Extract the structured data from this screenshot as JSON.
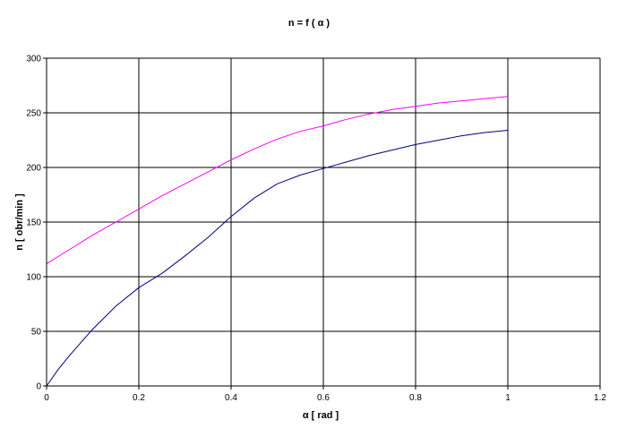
{
  "chart_data": {
    "type": "line",
    "title": "n = f ( α )",
    "xlabel": "α  [ rad ]",
    "ylabel": "n [ obr/min ]",
    "xlim": [
      0,
      1.2
    ],
    "ylim": [
      0,
      300
    ],
    "x_ticks": [
      "0",
      "0.2",
      "0.4",
      "0.6",
      "0.8",
      "1",
      "1.2"
    ],
    "y_ticks": [
      "0",
      "50",
      "100",
      "150",
      "200",
      "250",
      "300"
    ],
    "grid": true,
    "legend": false,
    "series": [
      {
        "color": "#ff00ff",
        "x": [
          0,
          0.05,
          0.1,
          0.15,
          0.2,
          0.25,
          0.3,
          0.35,
          0.4,
          0.45,
          0.5,
          0.55,
          0.6,
          0.65,
          0.7,
          0.75,
          0.8,
          0.85,
          0.9,
          0.95,
          1.0
        ],
        "values": [
          112,
          125,
          138,
          150,
          162,
          174,
          185,
          196,
          207,
          217,
          226,
          233,
          238,
          244,
          249,
          253,
          256,
          259,
          261,
          263,
          265
        ]
      },
      {
        "color": "#000080",
        "x": [
          0,
          0.025,
          0.05,
          0.075,
          0.1,
          0.15,
          0.2,
          0.25,
          0.3,
          0.35,
          0.4,
          0.45,
          0.5,
          0.55,
          0.6,
          0.65,
          0.7,
          0.75,
          0.8,
          0.85,
          0.9,
          0.95,
          1.0
        ],
        "values": [
          0,
          15,
          28,
          40,
          52,
          73,
          90,
          103,
          119,
          136,
          155,
          172,
          185,
          193,
          199,
          205,
          211,
          216,
          221,
          225,
          229,
          232,
          234
        ]
      }
    ]
  }
}
